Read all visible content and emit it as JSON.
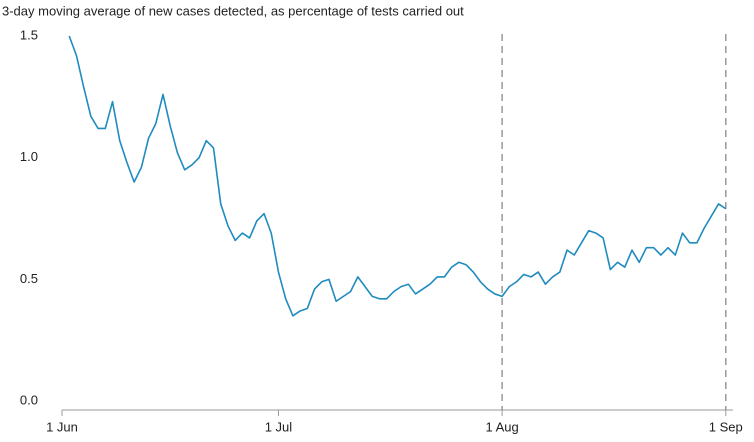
{
  "chart_data": {
    "type": "line",
    "title": "3-day moving average of new cases detected, as percentage of tests carried out",
    "x": [
      "2 Jun",
      "3 Jun",
      "4 Jun",
      "5 Jun",
      "6 Jun",
      "7 Jun",
      "8 Jun",
      "9 Jun",
      "10 Jun",
      "11 Jun",
      "12 Jun",
      "13 Jun",
      "14 Jun",
      "15 Jun",
      "16 Jun",
      "17 Jun",
      "18 Jun",
      "19 Jun",
      "20 Jun",
      "21 Jun",
      "22 Jun",
      "23 Jun",
      "24 Jun",
      "25 Jun",
      "26 Jun",
      "27 Jun",
      "28 Jun",
      "29 Jun",
      "30 Jun",
      "1 Jul",
      "2 Jul",
      "3 Jul",
      "4 Jul",
      "5 Jul",
      "6 Jul",
      "7 Jul",
      "8 Jul",
      "9 Jul",
      "10 Jul",
      "11 Jul",
      "12 Jul",
      "13 Jul",
      "14 Jul",
      "15 Jul",
      "16 Jul",
      "17 Jul",
      "18 Jul",
      "19 Jul",
      "20 Jul",
      "21 Jul",
      "22 Jul",
      "23 Jul",
      "24 Jul",
      "25 Jul",
      "26 Jul",
      "27 Jul",
      "28 Jul",
      "29 Jul",
      "30 Jul",
      "31 Jul",
      "1 Aug",
      "2 Aug",
      "3 Aug",
      "4 Aug",
      "5 Aug",
      "6 Aug",
      "7 Aug",
      "8 Aug",
      "9 Aug",
      "10 Aug",
      "11 Aug",
      "12 Aug",
      "13 Aug",
      "14 Aug",
      "15 Aug",
      "16 Aug",
      "17 Aug",
      "18 Aug",
      "19 Aug",
      "20 Aug",
      "21 Aug",
      "22 Aug",
      "23 Aug",
      "24 Aug",
      "25 Aug",
      "26 Aug",
      "27 Aug",
      "28 Aug",
      "29 Aug",
      "30 Aug",
      "31 Aug",
      "1 Sep"
    ],
    "series": [
      {
        "color": "#1f8bbf",
        "values": [
          1.5,
          1.42,
          1.29,
          1.17,
          1.12,
          1.12,
          1.23,
          1.07,
          0.98,
          0.9,
          0.96,
          1.08,
          1.14,
          1.26,
          1.13,
          1.02,
          0.95,
          0.97,
          1.0,
          1.07,
          1.04,
          0.81,
          0.72,
          0.66,
          0.69,
          0.67,
          0.74,
          0.77,
          0.69,
          0.53,
          0.42,
          0.35,
          0.37,
          0.38,
          0.46,
          0.49,
          0.5,
          0.41,
          0.43,
          0.45,
          0.51,
          0.47,
          0.43,
          0.42,
          0.42,
          0.45,
          0.47,
          0.48,
          0.44,
          0.46,
          0.48,
          0.51,
          0.51,
          0.55,
          0.57,
          0.56,
          0.53,
          0.49,
          0.46,
          0.44,
          0.43,
          0.47,
          0.49,
          0.52,
          0.51,
          0.53,
          0.48,
          0.51,
          0.53,
          0.62,
          0.6,
          0.65,
          0.7,
          0.69,
          0.67,
          0.54,
          0.57,
          0.55,
          0.62,
          0.57,
          0.63,
          0.63,
          0.6,
          0.63,
          0.6,
          0.69,
          0.65,
          0.65,
          0.71,
          0.76,
          0.81,
          0.79
        ]
      }
    ],
    "xlim": [
      "1 Jun",
      "2 Sep"
    ],
    "xticks": [
      "1 Jun",
      "1 Jul",
      "1 Aug",
      "1 Sep"
    ],
    "ylim": [
      0,
      1.5
    ],
    "yticks": [
      {
        "value": 0,
        "label": "0.0"
      },
      {
        "value": 0.5,
        "label": "0.5"
      },
      {
        "value": 1,
        "label": "1.0"
      },
      {
        "value": 1.5,
        "label": "1.5"
      }
    ],
    "vlines": [
      "1 Aug",
      "1 Sep"
    ],
    "grid": false
  }
}
